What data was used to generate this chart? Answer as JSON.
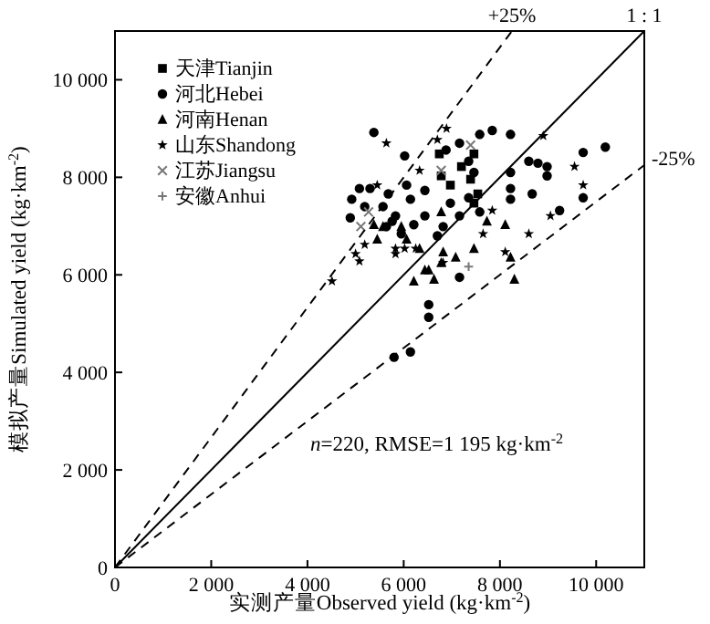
{
  "chart_data": {
    "type": "scatter",
    "xlabel": "实测产量Observed yield (kg·km$^{-2}$)",
    "ylabel": "模拟产量Simulated yield (kg·km$^{-2}$)",
    "xlim": [
      0,
      11000
    ],
    "ylim": [
      0,
      11000
    ],
    "xticks": [
      0,
      {
        "value": 2000,
        "label": "2 000"
      },
      {
        "value": 4000,
        "label": "4 000"
      },
      {
        "value": 6000,
        "label": "6 000"
      },
      {
        "value": 8000,
        "label": "8 000"
      },
      {
        "value": 10000,
        "label": "10 000"
      }
    ],
    "yticks": [
      0,
      {
        "value": 2000,
        "label": "2 000"
      },
      {
        "value": 4000,
        "label": "4 000"
      },
      {
        "value": 6000,
        "label": "6 000"
      },
      {
        "value": 8000,
        "label": "8 000"
      },
      {
        "value": 10000,
        "label": "10 000"
      }
    ],
    "grid": false,
    "legend": "top left",
    "annotations": [
      "*n*=220, RMSE=1 195 kg·km$^{-2}$"
    ],
    "series": [
      {
        "name": "天津Tianjin",
        "color": "#000000",
        "marker": "square",
        "x": [
          6740,
          7460,
          7390,
          7460,
          6970,
          6780,
          7200,
          7540
        ],
        "values": [
          8480,
          8480,
          7960,
          7470,
          7840,
          8030,
          8220,
          7660
        ]
      },
      {
        "name": "河北Hebei",
        "color": "#000000",
        "marker": "circle",
        "x": [
          5380,
          6020,
          10190,
          9730,
          4920,
          5080,
          4890,
          6520,
          6520,
          5800,
          6140,
          7160,
          9730,
          9240,
          8220,
          8670,
          8600,
          8790,
          8980,
          8980,
          8220,
          8220,
          7840,
          8220,
          7580,
          7160,
          7350,
          7460,
          6880,
          6440,
          6060,
          5680,
          5300,
          5570,
          5830,
          6210,
          6440,
          6970,
          7160,
          7350,
          6820,
          5950,
          5640,
          5190,
          7580,
          5760,
          6700,
          6140
        ],
        "values": [
          8920,
          8440,
          8620,
          8510,
          7550,
          7770,
          7170,
          5390,
          5130,
          4310,
          4420,
          5950,
          7580,
          7320,
          7550,
          7660,
          8330,
          8290,
          8220,
          8030,
          8100,
          7770,
          8960,
          8880,
          8880,
          8700,
          8330,
          8100,
          8560,
          7730,
          7840,
          7660,
          7770,
          7400,
          7210,
          7030,
          7210,
          7470,
          7210,
          7580,
          6990,
          6840,
          6990,
          7400,
          7290,
          7100,
          6800,
          7550
        ]
      },
      {
        "name": "河南Henan",
        "color": "#000000",
        "marker": "triangle",
        "x": [
          6210,
          6630,
          6820,
          7460,
          7730,
          8110,
          8300,
          8220,
          5450,
          6060,
          6330,
          6780,
          7080,
          6520,
          5380,
          6780,
          5570,
          5950,
          6440
        ],
        "values": [
          5870,
          5910,
          6470,
          6540,
          7100,
          7030,
          5910,
          6360,
          6730,
          6730,
          6540,
          6250,
          6360,
          6100,
          7030,
          7290,
          6990,
          6990,
          6100
        ]
      },
      {
        "name": "山东Shandong",
        "color": "#000000",
        "marker": "star",
        "x": [
          5640,
          6890,
          8900,
          9550,
          9730,
          9050,
          8600,
          7840,
          7650,
          8110,
          6330,
          6700,
          5830,
          6020,
          6820,
          5450,
          5080,
          4510,
          5830,
          6250,
          5000,
          5190
        ],
        "values": [
          8700,
          9000,
          8850,
          8220,
          7840,
          7210,
          6840,
          7320,
          6840,
          6470,
          8140,
          8770,
          6430,
          6540,
          6250,
          7840,
          6280,
          5870,
          6540,
          6540,
          6430,
          6620
        ]
      },
      {
        "name": "江苏Jiangsu",
        "color": "#777777",
        "marker": "cross",
        "x": [
          7390,
          5270,
          5110,
          6780
        ],
        "values": [
          8660,
          7290,
          6990,
          8140
        ]
      },
      {
        "name": "安徽Anhui",
        "color": "#777777",
        "marker": "plus",
        "x": [
          7350
        ],
        "values": [
          6170
        ]
      },
      {
        "name": "+25%",
        "type": "line",
        "line_style": "dashed",
        "color": "#000000",
        "x": [
          0,
          8250
        ],
        "values": [
          0,
          11000
        ]
      },
      {
        "name": "1 : 1",
        "type": "line",
        "line_style": "solid",
        "color": "#000000",
        "x": [
          0,
          11000
        ],
        "values": [
          0,
          11000
        ]
      },
      {
        "name": "-25%",
        "type": "line",
        "line_style": "dashed",
        "color": "#000000",
        "x": [
          0,
          11000
        ],
        "values": [
          0,
          8250
        ]
      }
    ]
  }
}
